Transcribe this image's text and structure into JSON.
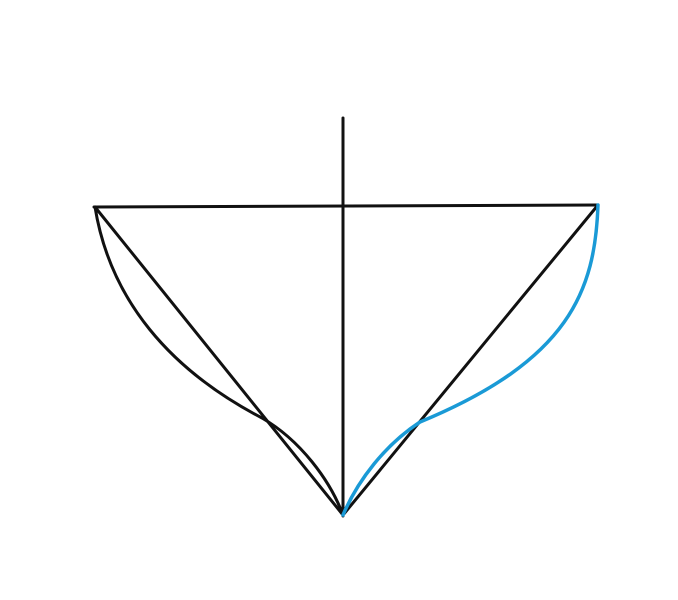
{
  "colors": {
    "background": "#ffffff",
    "stroke": "#111111",
    "highlight": "#1a9ad6"
  }
}
